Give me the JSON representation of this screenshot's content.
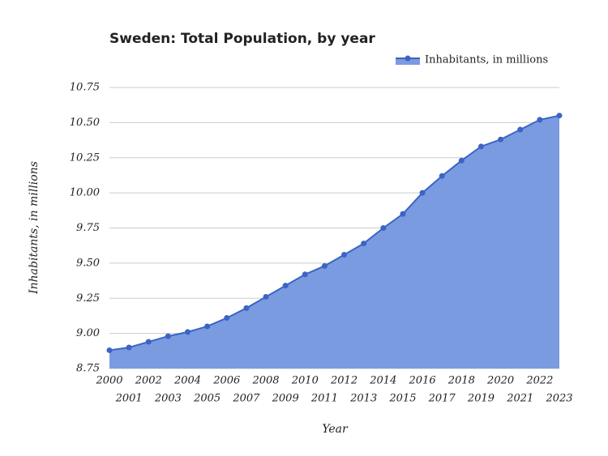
{
  "chart_data": {
    "type": "area",
    "title": "Sweden: Total Population, by year",
    "x_label": "Year",
    "y_label": "Inhabitants, in millions",
    "x": [
      2000,
      2001,
      2002,
      2003,
      2004,
      2005,
      2006,
      2007,
      2008,
      2009,
      2010,
      2011,
      2012,
      2013,
      2014,
      2015,
      2016,
      2017,
      2018,
      2019,
      2020,
      2021,
      2022,
      2023
    ],
    "series": [
      {
        "name": "Inhabitants, in millions",
        "color": "#3b64c4",
        "fill": "#7b9be0",
        "values": [
          8.88,
          8.9,
          8.94,
          8.98,
          9.01,
          9.05,
          9.11,
          9.18,
          9.26,
          9.34,
          9.42,
          9.48,
          9.56,
          9.64,
          9.75,
          9.85,
          10.0,
          10.12,
          10.23,
          10.33,
          10.38,
          10.45,
          10.52,
          10.55
        ]
      }
    ],
    "xlim": [
      2000,
      2023
    ],
    "ylim": [
      8.75,
      10.75
    ],
    "yticks": [
      {
        "value": 8.75,
        "label": "8.75"
      },
      {
        "value": 9,
        "label": "9.00"
      },
      {
        "value": 9.25,
        "label": "9.25"
      },
      {
        "value": 9.5,
        "label": "9.50"
      },
      {
        "value": 9.75,
        "label": "9.75"
      },
      {
        "value": 10,
        "label": "10.00"
      },
      {
        "value": 10.25,
        "label": "10.25"
      },
      {
        "value": 10.5,
        "label": "10.50"
      },
      {
        "value": 10.75,
        "label": "10.75"
      }
    ],
    "grid": true,
    "legend": "top-right"
  }
}
